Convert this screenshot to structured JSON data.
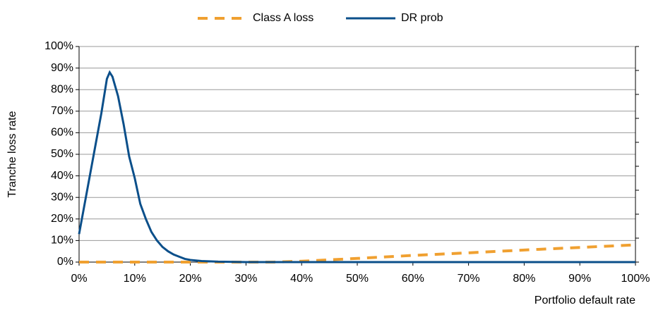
{
  "chart_data": {
    "type": "line",
    "x_label": "Portfolio default rate",
    "y_label": "Tranche loss rate",
    "xlim": [
      0,
      100
    ],
    "xticks": [
      {
        "value": 0,
        "label": "0%"
      },
      {
        "value": 10,
        "label": "10%"
      },
      {
        "value": 20,
        "label": "20%"
      },
      {
        "value": 30,
        "label": "30%"
      },
      {
        "value": 40,
        "label": "40%"
      },
      {
        "value": 50,
        "label": "50%"
      },
      {
        "value": 60,
        "label": "60%"
      },
      {
        "value": 70,
        "label": "70%"
      },
      {
        "value": 80,
        "label": "80%"
      },
      {
        "value": 90,
        "label": "90%"
      },
      {
        "value": 100,
        "label": "100%"
      }
    ],
    "ylim": [
      0,
      100
    ],
    "yticks": [
      {
        "value": 0,
        "label": "0%"
      },
      {
        "value": 10,
        "label": "10%"
      },
      {
        "value": 20,
        "label": "20%"
      },
      {
        "value": 30,
        "label": "30%"
      },
      {
        "value": 40,
        "label": "40%"
      },
      {
        "value": 50,
        "label": "50%"
      },
      {
        "value": 60,
        "label": "60%"
      },
      {
        "value": 70,
        "label": "70%"
      },
      {
        "value": 80,
        "label": "80%"
      },
      {
        "value": 90,
        "label": "90%"
      },
      {
        "value": 100,
        "label": "100%"
      }
    ],
    "grid": true,
    "legend": "top",
    "series": [
      {
        "name": "Class A loss",
        "color": "#f0a030",
        "dashed": true,
        "x": [
          0,
          10,
          20,
          30,
          35,
          40,
          50,
          60,
          70,
          80,
          90,
          100
        ],
        "values": [
          0,
          0,
          0,
          0,
          0,
          0.4,
          1.7,
          3.1,
          4.3,
          5.6,
          6.8,
          8.0
        ]
      },
      {
        "name": "DR prob",
        "color": "#0b4f8a",
        "dashed": false,
        "x": [
          0,
          1,
          2,
          3,
          4,
          5,
          5.5,
          6,
          7,
          8,
          9,
          10,
          11,
          12,
          13,
          14,
          15,
          16,
          17,
          18,
          19,
          20,
          22,
          25,
          30,
          40,
          50,
          60,
          70,
          80,
          90,
          100
        ],
        "values": [
          13,
          27,
          41,
          55,
          69,
          85,
          88,
          86,
          77,
          64,
          49,
          39,
          27,
          20,
          14,
          10,
          7,
          5,
          3.5,
          2.5,
          1.5,
          1,
          0.5,
          0.2,
          0,
          0,
          0,
          0,
          0,
          0,
          0,
          0
        ]
      }
    ]
  }
}
